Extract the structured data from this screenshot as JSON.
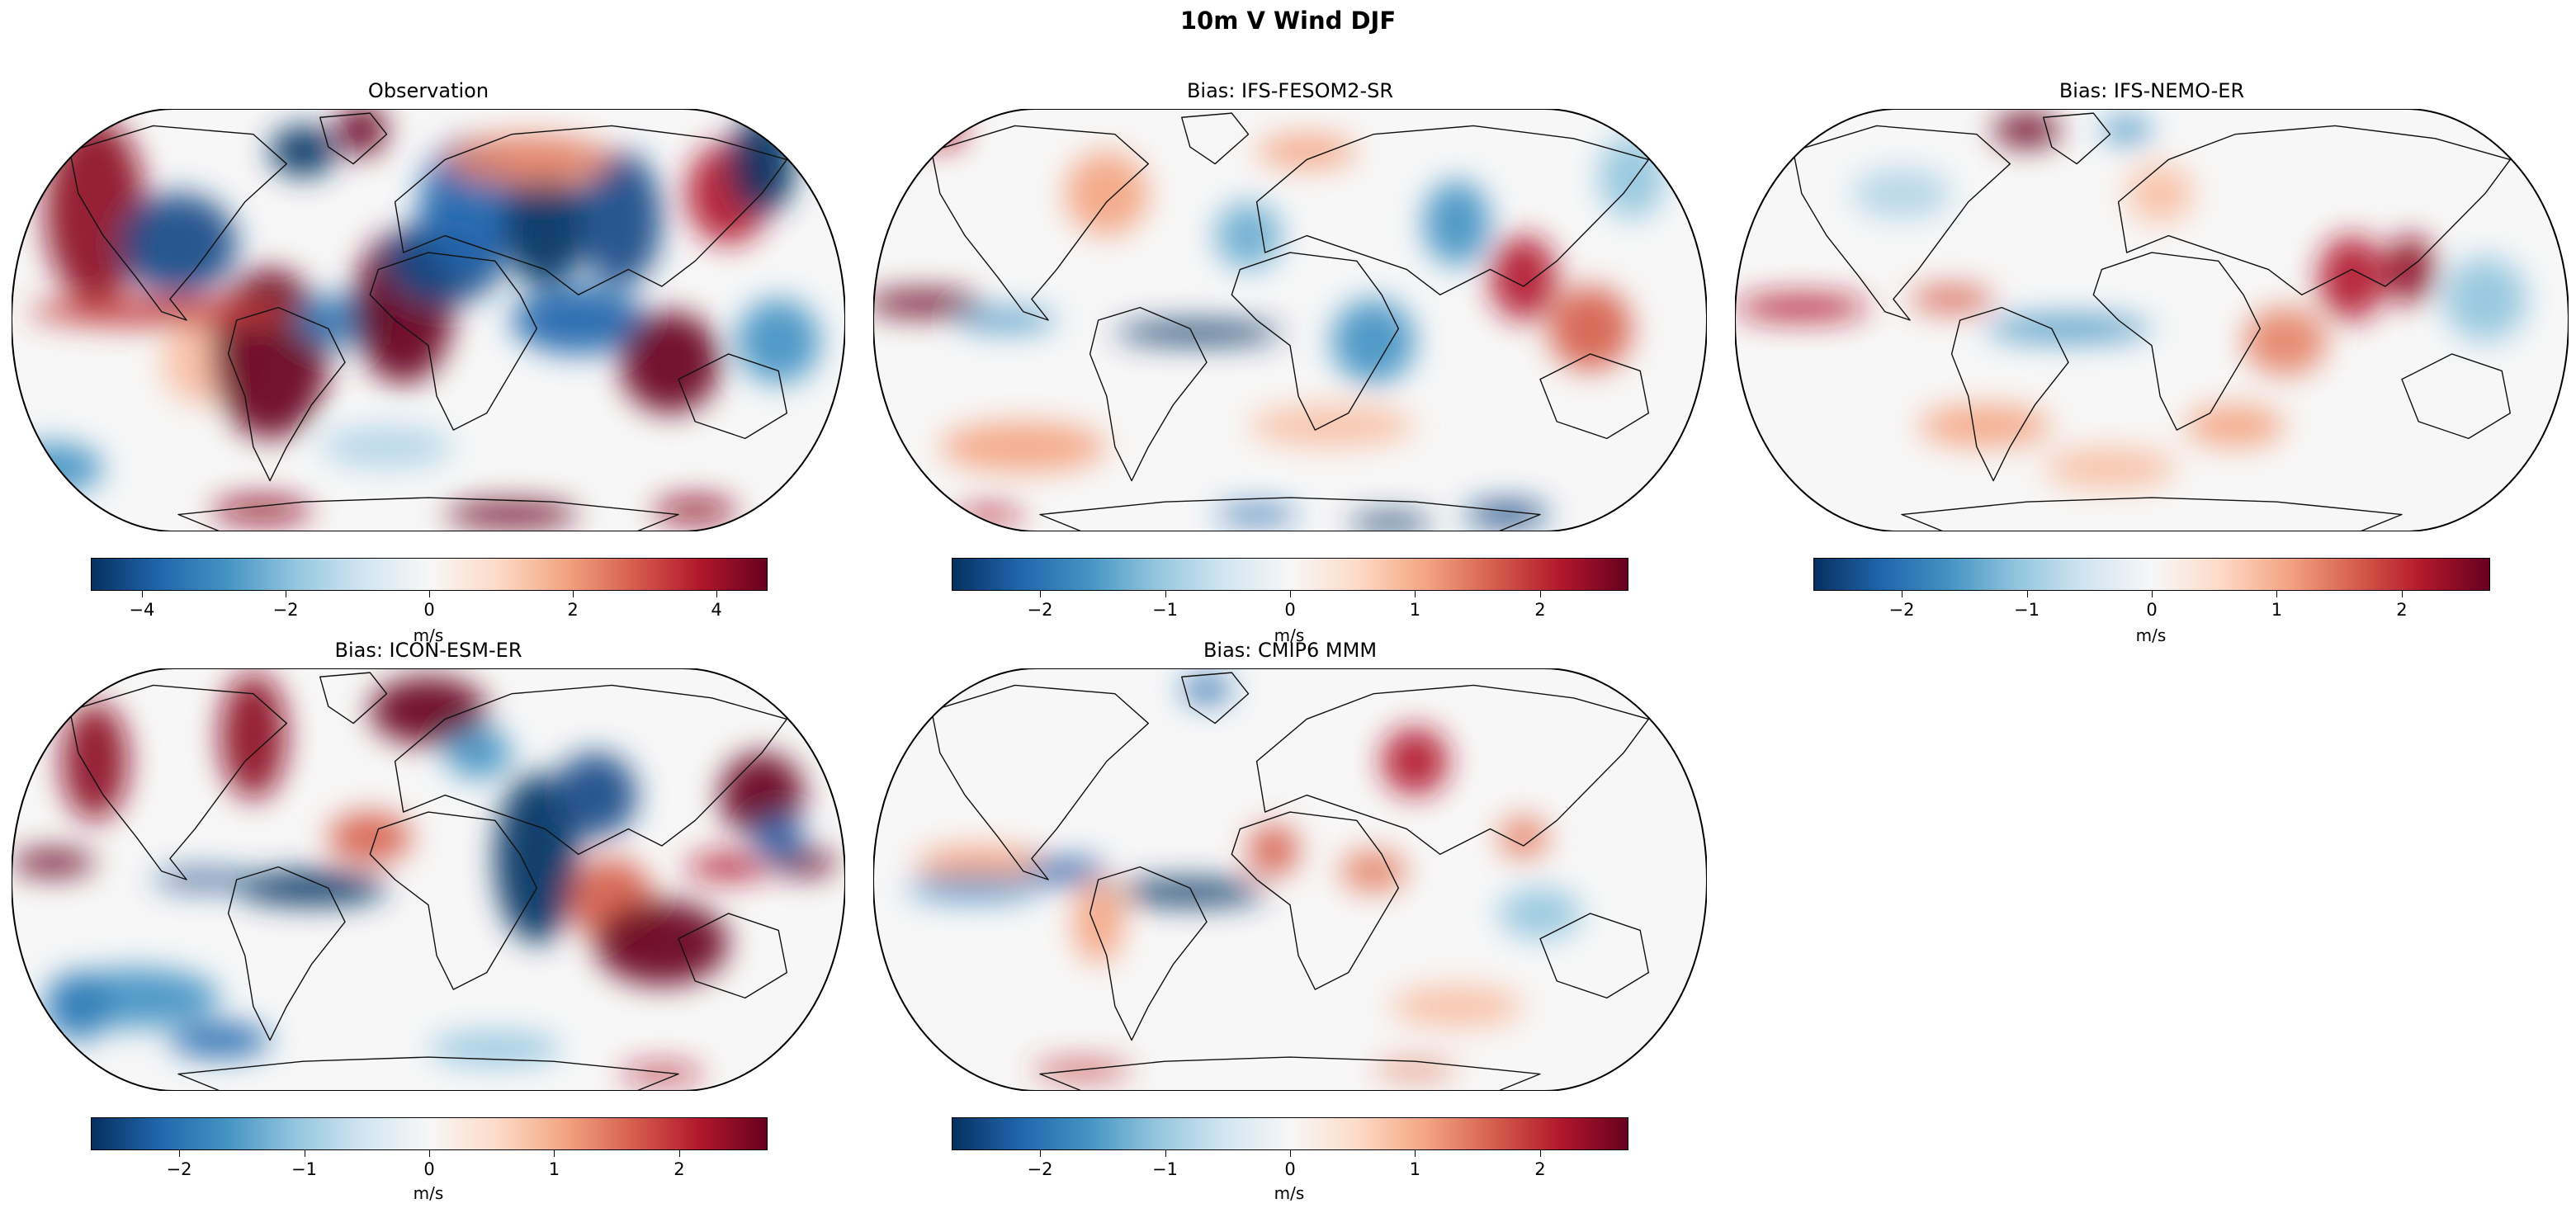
{
  "figure": {
    "title": "10m V Wind DJF"
  },
  "colormap": {
    "name": "RdBu_r",
    "stops": [
      "#053061",
      "#2166ac",
      "#4393c3",
      "#92c5de",
      "#d1e5f0",
      "#f7f7f7",
      "#fddbc7",
      "#f4a582",
      "#d6604d",
      "#b2182b",
      "#67001f"
    ],
    "coastline": "#111111",
    "land_tint": "#eef3f8"
  },
  "panels": [
    {
      "id": "observation",
      "title": "Observation",
      "field": "observation",
      "colorbar": {
        "label": "m/s",
        "vmin": -4.7,
        "vmax": 4.7,
        "ticks": [
          -4,
          -2,
          0,
          2,
          4
        ],
        "tick_labels": [
          "−4",
          "−2",
          "0",
          "2",
          "4"
        ]
      }
    },
    {
      "id": "ifs-fesom2-sr",
      "title": "Bias: IFS-FESOM2-SR",
      "field": "bias-ifs-fesom2",
      "colorbar": {
        "label": "m/s",
        "vmin": -2.7,
        "vmax": 2.7,
        "ticks": [
          -2,
          -1,
          0,
          1,
          2
        ],
        "tick_labels": [
          "−2",
          "−1",
          "0",
          "1",
          "2"
        ]
      }
    },
    {
      "id": "ifs-nemo-er",
      "title": "Bias: IFS-NEMO-ER",
      "field": "bias-ifs-nemo",
      "colorbar": {
        "label": "m/s",
        "vmin": -2.7,
        "vmax": 2.7,
        "ticks": [
          -2,
          -1,
          0,
          1,
          2
        ],
        "tick_labels": [
          "−2",
          "−1",
          "0",
          "1",
          "2"
        ]
      }
    },
    {
      "id": "icon-esm-er",
      "title": "Bias: ICON-ESM-ER",
      "field": "bias-icon",
      "colorbar": {
        "label": "m/s",
        "vmin": -2.7,
        "vmax": 2.7,
        "ticks": [
          -2,
          -1,
          0,
          1,
          2
        ],
        "tick_labels": [
          "−2",
          "−1",
          "0",
          "1",
          "2"
        ]
      }
    },
    {
      "id": "cmip6-mmm",
      "title": "Bias: CMIP6 MMM",
      "field": "bias-cmip6",
      "colorbar": {
        "label": "m/s",
        "vmin": -2.7,
        "vmax": 2.7,
        "ticks": [
          -2,
          -1,
          0,
          1,
          2
        ],
        "tick_labels": [
          "−2",
          "−1",
          "0",
          "1",
          "2"
        ]
      }
    }
  ]
}
